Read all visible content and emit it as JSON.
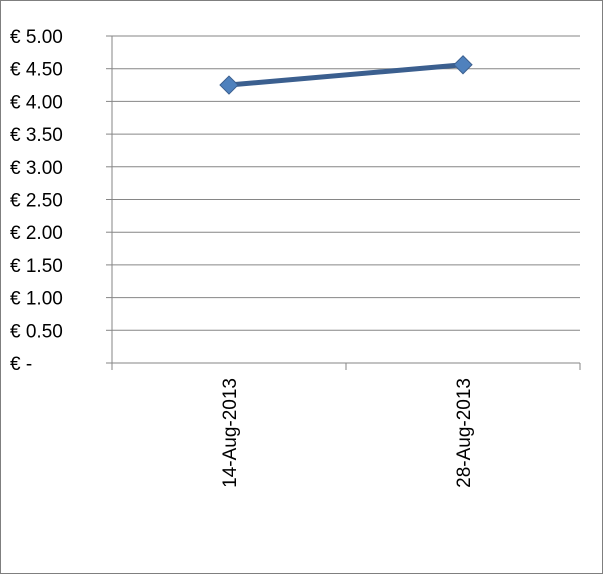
{
  "chart_data": {
    "type": "line",
    "title": "",
    "xlabel": "",
    "ylabel": "",
    "categories": [
      "14-Aug-2013",
      "28-Aug-2013"
    ],
    "series": [
      {
        "values": [
          4.25,
          4.56
        ],
        "color": "#3b5f8f",
        "marker": "diamond",
        "marker_color": "#4f81bd"
      }
    ],
    "ylim": [
      0,
      5
    ],
    "yticks": [
      5.0,
      4.5,
      4.0,
      3.5,
      3.0,
      2.5,
      2.0,
      1.5,
      1.0,
      0.5,
      0
    ],
    "ytick_labels": [
      "€ 5.00",
      "€ 4.50",
      "€ 4.00",
      "€ 3.50",
      "€ 3.00",
      "€ 2.50",
      "€ 2.00",
      "€ 1.50",
      "€ 1.00",
      "€ 0.50",
      "€ -"
    ],
    "grid": "horizontal",
    "legend": "none",
    "gridline_color": "#868686",
    "axis_color": "#868686",
    "border_color": "#7f7f7f"
  }
}
